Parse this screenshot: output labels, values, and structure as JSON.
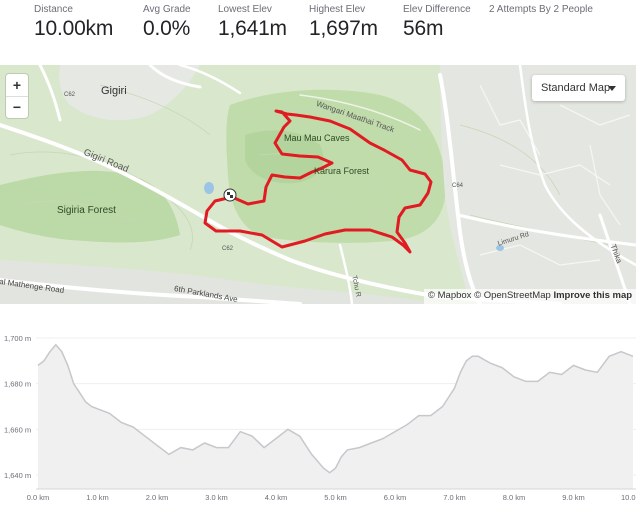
{
  "stats": [
    {
      "label": "Distance",
      "value": "10.00km"
    },
    {
      "label": "Avg Grade",
      "value": "0.0%"
    },
    {
      "label": "Lowest Elev",
      "value": "1,641m"
    },
    {
      "label": "Highest Elev",
      "value": "1,697m"
    },
    {
      "label": "Elev Difference",
      "value": "56m"
    }
  ],
  "attempts": "2 Attempts By 2 People",
  "map": {
    "zoom_in": "+",
    "zoom_out": "−",
    "style_selector": "Standard Map",
    "labels": {
      "gigiri": "Gigiri",
      "gigiri_road": "Gigiri Road",
      "sigiria_forest": "Sigiria Forest",
      "mau_mau_caves": "Mau Mau Caves",
      "karura_forest": "Karura Forest",
      "wangari_track": "Wangari Maathai Track",
      "c62_top": "C62",
      "c62_bottom": "C62",
      "c64": "C64",
      "limuru_road": "Limuru Rd",
      "thika": "Thika",
      "mathenge_road": "al Mathenge Road",
      "parklands_ave": "6th Parklands Ave",
      "tchu": "Tchu R"
    },
    "attribution": {
      "mapbox": "© Mapbox",
      "osm": "© OpenStreetMap",
      "improve": "Improve this map"
    },
    "route_color": "#e01b22"
  },
  "elevation": {
    "y_ticks": [
      "1,700 m",
      "1,680 m",
      "1,660 m",
      "1,640 m"
    ],
    "x_ticks": [
      "0.0 km",
      "1.0 km",
      "2.0 km",
      "3.0 km",
      "4.0 km",
      "5.0 km",
      "6.0 km",
      "7.0 km",
      "8.0 km",
      "9.0 km",
      "10.0"
    ],
    "profile_km": [
      0,
      0.1,
      0.2,
      0.3,
      0.4,
      0.5,
      0.6,
      0.7,
      0.8,
      0.9,
      1.0,
      1.2,
      1.4,
      1.6,
      1.8,
      2.0,
      2.2,
      2.4,
      2.6,
      2.8,
      3.0,
      3.2,
      3.4,
      3.6,
      3.8,
      4.0,
      4.2,
      4.4,
      4.6,
      4.8,
      4.9,
      5.0,
      5.1,
      5.2,
      5.4,
      5.6,
      5.8,
      6.0,
      6.2,
      6.4,
      6.6,
      6.8,
      7.0,
      7.1,
      7.2,
      7.3,
      7.4,
      7.6,
      7.8,
      8.0,
      8.2,
      8.4,
      8.6,
      8.8,
      9.0,
      9.2,
      9.4,
      9.6,
      9.8,
      10.0
    ],
    "profile_m": [
      1688,
      1690,
      1694,
      1697,
      1694,
      1688,
      1680,
      1676,
      1672,
      1670,
      1669,
      1667,
      1663,
      1661,
      1657,
      1653,
      1649,
      1652,
      1651,
      1654,
      1652,
      1652,
      1659,
      1657,
      1652,
      1656,
      1660,
      1657,
      1649,
      1643,
      1641,
      1643,
      1648,
      1651,
      1652,
      1654,
      1656,
      1659,
      1662,
      1666,
      1666,
      1670,
      1678,
      1685,
      1690,
      1692,
      1692,
      1689,
      1687,
      1683,
      1681,
      1681,
      1685,
      1684,
      1688,
      1686,
      1685,
      1692,
      1694,
      1692
    ],
    "fill_color": "#f0f0f1",
    "line_color": "#c7c7cc"
  }
}
